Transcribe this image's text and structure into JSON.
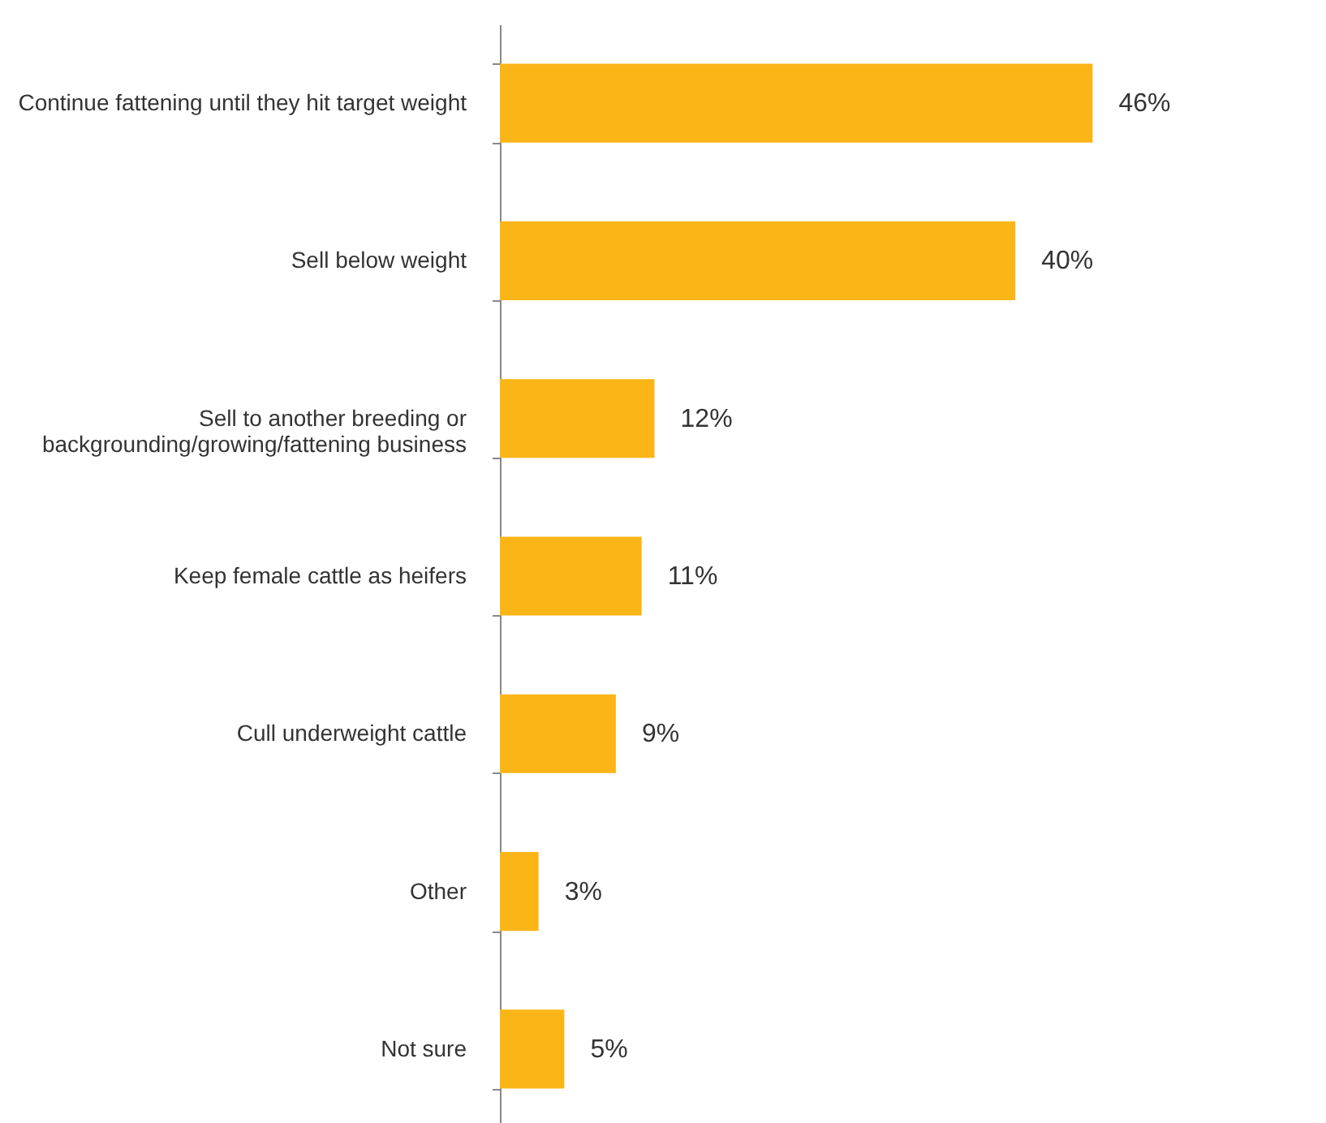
{
  "chart_data": {
    "type": "bar",
    "orientation": "horizontal",
    "categories": [
      "Continue fattening until they hit target weight",
      "Sell below weight",
      "Sell to another breeding or\nbackgrounding/growing/fattening business",
      "Keep female cattle as heifers",
      "Cull underweight cattle",
      "Other",
      "Not sure"
    ],
    "values": [
      46,
      40,
      12,
      11,
      9,
      3,
      5
    ],
    "value_labels": [
      "46%",
      "40%",
      "12%",
      "11%",
      "9%",
      "3%",
      "5%"
    ],
    "color": "#fbb517"
  }
}
